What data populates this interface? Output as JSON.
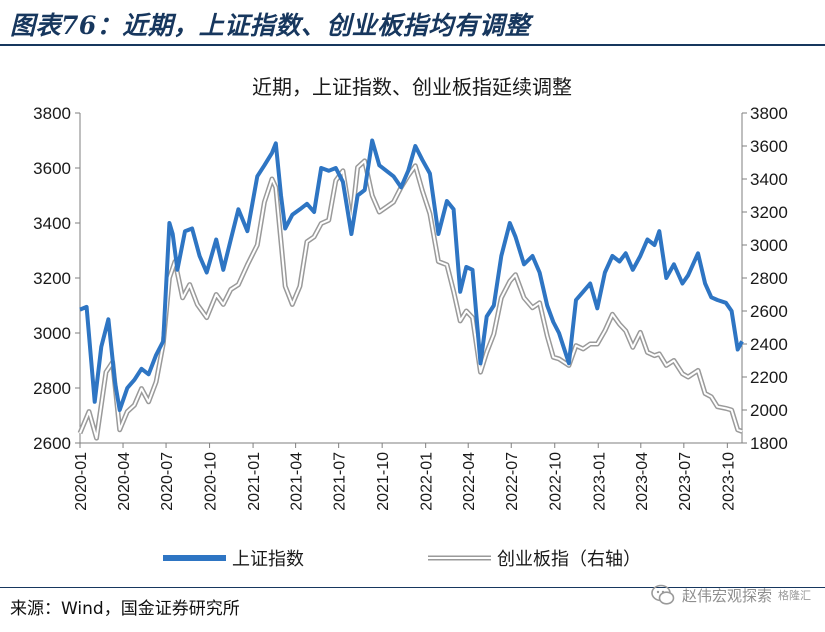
{
  "figure": {
    "title": "图表76：近期，上证指数、创业板指均有调整",
    "source": "来源：Wind，国金证券研究所",
    "watermark": "赵伟宏观探索",
    "watermark_sub": "格隆汇"
  },
  "colors": {
    "title": "#17375e",
    "sse": "#2e75c3",
    "chinext_outline": "#9a9a9a",
    "chinext_fill": "#ffffff"
  },
  "chart_data": {
    "type": "line",
    "title": "近期，上证指数、创业板指延续调整",
    "x_tick_labels": [
      "2020-01",
      "2020-04",
      "2020-07",
      "2020-10",
      "2021-01",
      "2021-04",
      "2021-07",
      "2021-10",
      "2022-01",
      "2022-04",
      "2022-07",
      "2022-10",
      "2023-01",
      "2023-04",
      "2023-07",
      "2023-10"
    ],
    "x_range": [
      "2020-01",
      "2023-11"
    ],
    "y_left": {
      "range": [
        2600,
        3800
      ],
      "ticks": [
        "3800",
        "3600",
        "3400",
        "3200",
        "3000",
        "2800",
        "2600"
      ]
    },
    "y_right": {
      "range": [
        1800,
        3800
      ],
      "ticks": [
        "3800",
        "3600",
        "3400",
        "3200",
        "3000",
        "2800",
        "2600",
        "2400",
        "2200",
        "2000",
        "1800"
      ]
    },
    "grid": false,
    "legend_position": "bottom",
    "series": [
      {
        "name": "上证指数",
        "axis": "left",
        "style": "thick-solid",
        "points": [
          [
            "2020-01",
            3085
          ],
          [
            "2020-01-15",
            3095
          ],
          [
            "2020-02-01",
            2750
          ],
          [
            "2020-02-15",
            2950
          ],
          [
            "2020-03-01",
            3050
          ],
          [
            "2020-03-15",
            2820
          ],
          [
            "2020-03-25",
            2720
          ],
          [
            "2020-04-10",
            2800
          ],
          [
            "2020-04-25",
            2830
          ],
          [
            "2020-05-10",
            2870
          ],
          [
            "2020-05-25",
            2850
          ],
          [
            "2020-06-10",
            2920
          ],
          [
            "2020-06-25",
            2970
          ],
          [
            "2020-07-08",
            3400
          ],
          [
            "2020-07-15",
            3360
          ],
          [
            "2020-07-25",
            3230
          ],
          [
            "2020-08-10",
            3370
          ],
          [
            "2020-08-25",
            3380
          ],
          [
            "2020-09-10",
            3280
          ],
          [
            "2020-09-25",
            3220
          ],
          [
            "2020-10-15",
            3340
          ],
          [
            "2020-10-30",
            3230
          ],
          [
            "2020-11-15",
            3340
          ],
          [
            "2020-12-01",
            3450
          ],
          [
            "2020-12-20",
            3370
          ],
          [
            "2021-01-10",
            3570
          ],
          [
            "2021-01-25",
            3610
          ],
          [
            "2021-02-10",
            3655
          ],
          [
            "2021-02-18",
            3690
          ],
          [
            "2021-03-01",
            3500
          ],
          [
            "2021-03-10",
            3380
          ],
          [
            "2021-03-25",
            3430
          ],
          [
            "2021-04-10",
            3450
          ],
          [
            "2021-04-25",
            3470
          ],
          [
            "2021-05-10",
            3440
          ],
          [
            "2021-05-25",
            3600
          ],
          [
            "2021-06-10",
            3590
          ],
          [
            "2021-06-25",
            3600
          ],
          [
            "2021-07-10",
            3550
          ],
          [
            "2021-07-28",
            3360
          ],
          [
            "2021-08-10",
            3500
          ],
          [
            "2021-08-25",
            3520
          ],
          [
            "2021-09-10",
            3700
          ],
          [
            "2021-09-25",
            3610
          ],
          [
            "2021-10-10",
            3590
          ],
          [
            "2021-10-25",
            3570
          ],
          [
            "2021-11-10",
            3530
          ],
          [
            "2021-11-25",
            3590
          ],
          [
            "2021-12-10",
            3680
          ],
          [
            "2021-12-25",
            3630
          ],
          [
            "2022-01-10",
            3580
          ],
          [
            "2022-01-28",
            3360
          ],
          [
            "2022-02-15",
            3480
          ],
          [
            "2022-03-01",
            3450
          ],
          [
            "2022-03-15",
            3150
          ],
          [
            "2022-03-28",
            3240
          ],
          [
            "2022-04-10",
            3230
          ],
          [
            "2022-04-27",
            2890
          ],
          [
            "2022-05-10",
            3060
          ],
          [
            "2022-05-25",
            3100
          ],
          [
            "2022-06-10",
            3280
          ],
          [
            "2022-06-28",
            3400
          ],
          [
            "2022-07-10",
            3350
          ],
          [
            "2022-07-28",
            3250
          ],
          [
            "2022-08-15",
            3280
          ],
          [
            "2022-08-30",
            3220
          ],
          [
            "2022-09-15",
            3100
          ],
          [
            "2022-09-28",
            3040
          ],
          [
            "2022-10-10",
            3000
          ],
          [
            "2022-10-31",
            2890
          ],
          [
            "2022-11-15",
            3120
          ],
          [
            "2022-11-30",
            3150
          ],
          [
            "2022-12-15",
            3180
          ],
          [
            "2022-12-30",
            3090
          ],
          [
            "2023-01-15",
            3220
          ],
          [
            "2023-01-31",
            3280
          ],
          [
            "2023-02-15",
            3260
          ],
          [
            "2023-02-28",
            3290
          ],
          [
            "2023-03-15",
            3230
          ],
          [
            "2023-03-31",
            3280
          ],
          [
            "2023-04-15",
            3340
          ],
          [
            "2023-04-30",
            3320
          ],
          [
            "2023-05-10",
            3370
          ],
          [
            "2023-05-25",
            3200
          ],
          [
            "2023-06-10",
            3250
          ],
          [
            "2023-06-28",
            3180
          ],
          [
            "2023-07-10",
            3210
          ],
          [
            "2023-07-31",
            3290
          ],
          [
            "2023-08-15",
            3180
          ],
          [
            "2023-08-28",
            3130
          ],
          [
            "2023-09-10",
            3120
          ],
          [
            "2023-09-28",
            3110
          ],
          [
            "2023-10-10",
            3080
          ],
          [
            "2023-10-23",
            2940
          ],
          [
            "2023-11",
            2970
          ]
        ]
      },
      {
        "name": "创业板指（右轴）",
        "axis": "right",
        "style": "double-outline",
        "points": [
          [
            "2020-01",
            1860
          ],
          [
            "2020-01-20",
            1990
          ],
          [
            "2020-02-05",
            1830
          ],
          [
            "2020-02-25",
            2230
          ],
          [
            "2020-03-10",
            2290
          ],
          [
            "2020-03-25",
            1880
          ],
          [
            "2020-04-10",
            1990
          ],
          [
            "2020-04-25",
            2030
          ],
          [
            "2020-05-10",
            2130
          ],
          [
            "2020-05-25",
            2050
          ],
          [
            "2020-06-10",
            2170
          ],
          [
            "2020-06-25",
            2400
          ],
          [
            "2020-07-08",
            2800
          ],
          [
            "2020-07-20",
            2900
          ],
          [
            "2020-08-05",
            2680
          ],
          [
            "2020-08-20",
            2760
          ],
          [
            "2020-09-05",
            2640
          ],
          [
            "2020-09-25",
            2560
          ],
          [
            "2020-10-15",
            2700
          ],
          [
            "2020-10-30",
            2640
          ],
          [
            "2020-11-15",
            2730
          ],
          [
            "2020-12-01",
            2760
          ],
          [
            "2020-12-20",
            2880
          ],
          [
            "2021-01-10",
            3000
          ],
          [
            "2021-01-25",
            3260
          ],
          [
            "2021-02-10",
            3400
          ],
          [
            "2021-02-18",
            3350
          ],
          [
            "2021-03-01",
            3020
          ],
          [
            "2021-03-10",
            2750
          ],
          [
            "2021-03-25",
            2640
          ],
          [
            "2021-04-10",
            2750
          ],
          [
            "2021-04-25",
            3020
          ],
          [
            "2021-05-10",
            3050
          ],
          [
            "2021-05-25",
            3130
          ],
          [
            "2021-06-10",
            3150
          ],
          [
            "2021-06-25",
            3390
          ],
          [
            "2021-07-10",
            3450
          ],
          [
            "2021-07-28",
            3130
          ],
          [
            "2021-08-10",
            3470
          ],
          [
            "2021-08-25",
            3510
          ],
          [
            "2021-09-10",
            3300
          ],
          [
            "2021-09-25",
            3200
          ],
          [
            "2021-10-10",
            3230
          ],
          [
            "2021-10-25",
            3260
          ],
          [
            "2021-11-10",
            3350
          ],
          [
            "2021-11-25",
            3420
          ],
          [
            "2021-12-10",
            3480
          ],
          [
            "2021-12-25",
            3330
          ],
          [
            "2022-01-10",
            3190
          ],
          [
            "2022-01-28",
            2900
          ],
          [
            "2022-02-15",
            2880
          ],
          [
            "2022-03-01",
            2720
          ],
          [
            "2022-03-15",
            2540
          ],
          [
            "2022-03-28",
            2600
          ],
          [
            "2022-04-10",
            2560
          ],
          [
            "2022-04-27",
            2230
          ],
          [
            "2022-05-10",
            2350
          ],
          [
            "2022-05-25",
            2460
          ],
          [
            "2022-06-10",
            2680
          ],
          [
            "2022-06-28",
            2780
          ],
          [
            "2022-07-10",
            2820
          ],
          [
            "2022-07-28",
            2680
          ],
          [
            "2022-08-15",
            2620
          ],
          [
            "2022-08-30",
            2650
          ],
          [
            "2022-09-15",
            2450
          ],
          [
            "2022-09-28",
            2320
          ],
          [
            "2022-10-10",
            2310
          ],
          [
            "2022-10-31",
            2270
          ],
          [
            "2022-11-15",
            2390
          ],
          [
            "2022-11-30",
            2370
          ],
          [
            "2022-12-15",
            2400
          ],
          [
            "2022-12-30",
            2400
          ],
          [
            "2023-01-15",
            2480
          ],
          [
            "2023-01-31",
            2580
          ],
          [
            "2023-02-15",
            2520
          ],
          [
            "2023-02-28",
            2480
          ],
          [
            "2023-03-15",
            2380
          ],
          [
            "2023-03-31",
            2470
          ],
          [
            "2023-04-15",
            2350
          ],
          [
            "2023-04-30",
            2330
          ],
          [
            "2023-05-10",
            2340
          ],
          [
            "2023-05-25",
            2270
          ],
          [
            "2023-06-10",
            2300
          ],
          [
            "2023-06-28",
            2220
          ],
          [
            "2023-07-10",
            2200
          ],
          [
            "2023-07-31",
            2240
          ],
          [
            "2023-08-15",
            2100
          ],
          [
            "2023-08-28",
            2080
          ],
          [
            "2023-09-10",
            2020
          ],
          [
            "2023-09-28",
            2010
          ],
          [
            "2023-10-10",
            2000
          ],
          [
            "2023-10-23",
            1880
          ],
          [
            "2023-11",
            1870
          ]
        ]
      }
    ]
  }
}
